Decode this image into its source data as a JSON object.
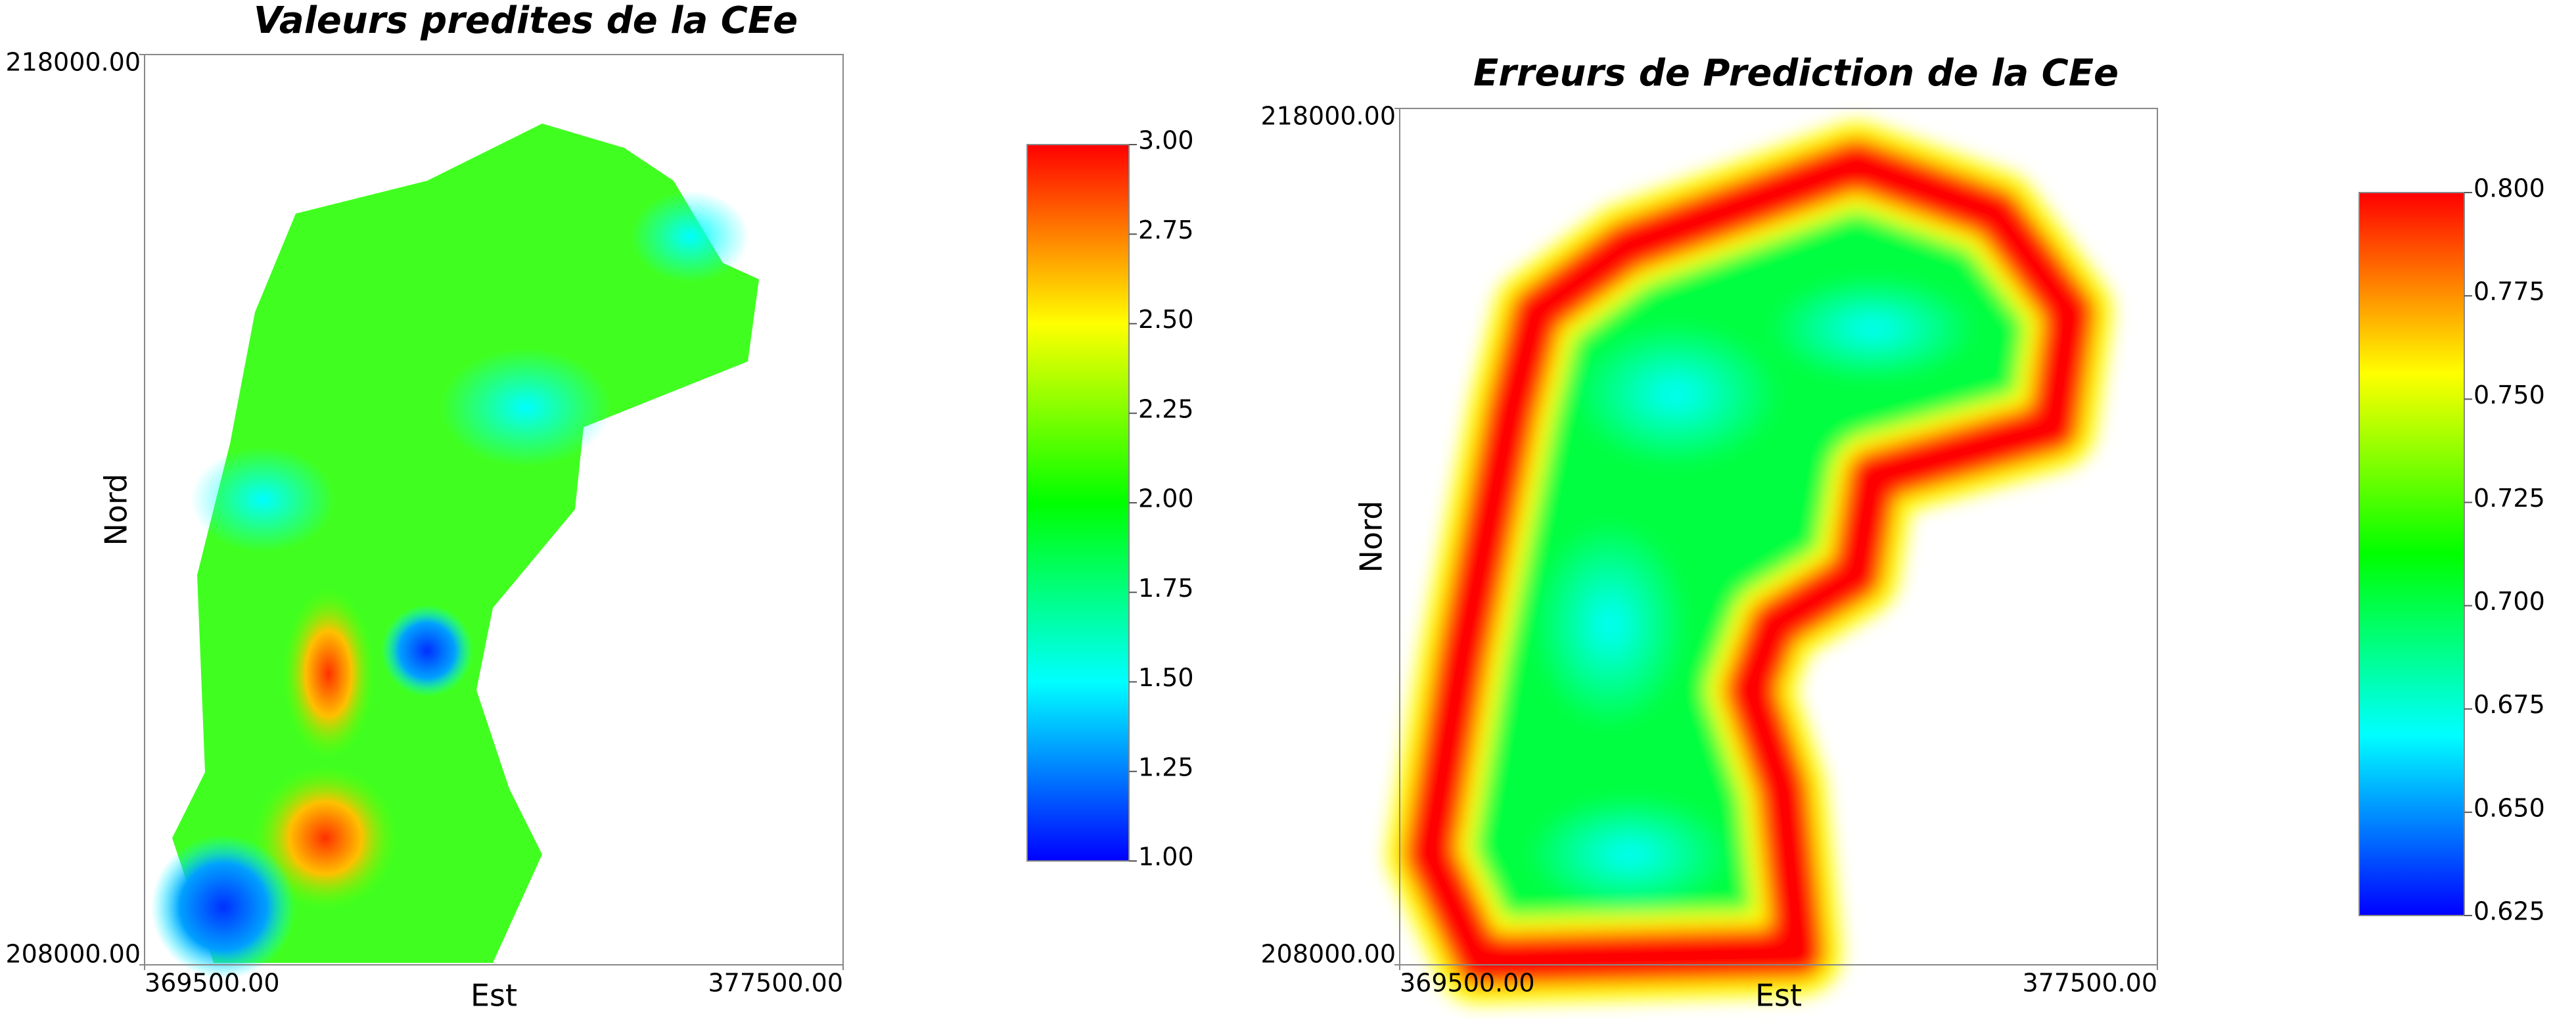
{
  "chart_data": [
    {
      "type": "heatmap",
      "title": "Valeurs predites de la CEe",
      "xlabel": "Est",
      "ylabel": "Nord",
      "xlim": [
        369500,
        377500
      ],
      "xticks": [
        {
          "value": 369500,
          "label": "369500.00"
        },
        {
          "value": 377500,
          "label": "377500.00"
        }
      ],
      "ylim": [
        208000,
        218000
      ],
      "yticks": [
        {
          "value": 208000,
          "label": "208000.00"
        },
        {
          "value": 218000,
          "label": "218000.00"
        }
      ],
      "colors": [
        "#0000ff",
        "#00ffff",
        "#00ff00",
        "#ffff00",
        "#ff0000"
      ],
      "clim": [
        1,
        3
      ],
      "cticks": [
        {
          "value": 1,
          "label": "1.00"
        },
        1.25,
        {
          "value": 1.5,
          "label": "1.50"
        },
        1.75,
        {
          "value": 2,
          "label": "2.00"
        },
        2.25,
        {
          "value": 2.5,
          "label": "2.50"
        },
        2.75,
        {
          "value": 3,
          "label": "3.00"
        }
      ]
    },
    {
      "type": "heatmap",
      "title": "Erreurs de Prediction de la CEe",
      "xlabel": "Est",
      "ylabel": "Nord",
      "xlim": [
        369500,
        377500
      ],
      "xticks": [
        {
          "value": 369500,
          "label": "369500.00"
        },
        {
          "value": 377500,
          "label": "377500.00"
        }
      ],
      "ylim": [
        208000,
        218000
      ],
      "yticks": [
        {
          "value": 208000,
          "label": "208000.00"
        },
        {
          "value": 218000,
          "label": "218000.00"
        }
      ],
      "colors": [
        "#0000ff",
        "#00ffff",
        "#00ff00",
        "#ffff00",
        "#ff0000"
      ],
      "clim": [
        0.625,
        0.8
      ],
      "cticks": [
        {
          "value": 0.625,
          "label": "0.625"
        },
        {
          "value": 0.65,
          "label": "0.650"
        },
        0.675,
        {
          "value": 0.7,
          "label": "0.700"
        },
        0.725,
        {
          "value": 0.75,
          "label": "0.750"
        },
        0.775,
        {
          "value": 0.8,
          "label": "0.800"
        }
      ]
    }
  ]
}
